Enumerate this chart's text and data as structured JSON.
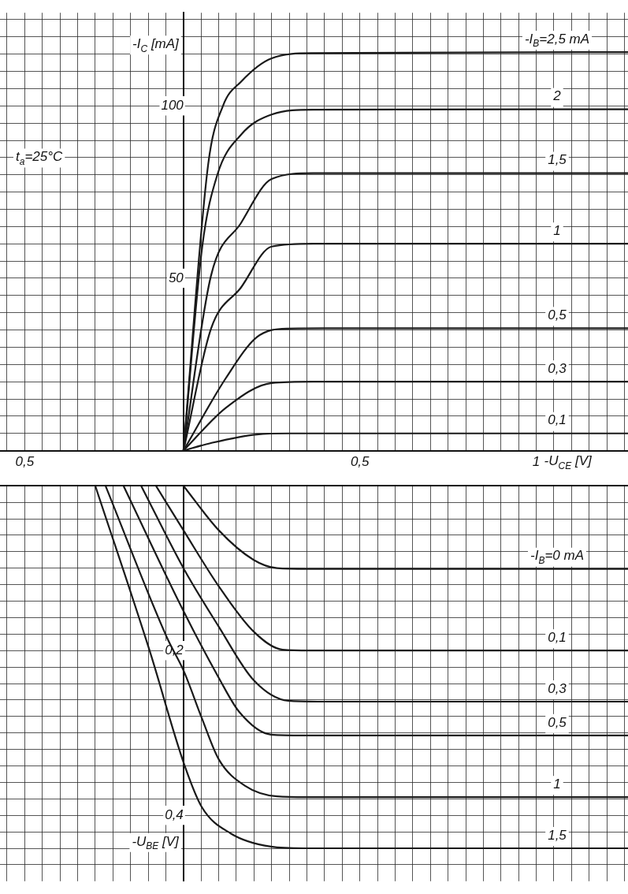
{
  "chart_data": [
    {
      "type": "line",
      "xlabel": "-U$_{CE}$ [V]",
      "ylabel": "-I$_{C}$ [mA]",
      "annotations": [
        "t$_{a}$=25°C"
      ],
      "xlim": [
        -0.52,
        1.26
      ],
      "xticks": [
        {
          "value": -0.5,
          "label": null
        },
        {
          "value": -0.45,
          "label": "0,5"
        },
        {
          "value": -0.4,
          "label": null
        },
        {
          "value": -0.35,
          "label": null
        },
        {
          "value": -0.3,
          "label": null
        },
        {
          "value": -0.25,
          "label": null
        },
        {
          "value": -0.2,
          "label": null
        },
        {
          "value": -0.15,
          "label": null
        },
        {
          "value": -0.1,
          "label": null
        },
        {
          "value": -0.05,
          "label": null
        },
        {
          "value": 0,
          "label": null
        },
        {
          "value": 0.05,
          "label": null
        },
        {
          "value": 0.1,
          "label": null
        },
        {
          "value": 0.15,
          "label": null
        },
        {
          "value": 0.2,
          "label": null
        },
        {
          "value": 0.25,
          "label": null
        },
        {
          "value": 0.3,
          "label": null
        },
        {
          "value": 0.35,
          "label": null
        },
        {
          "value": 0.4,
          "label": null
        },
        {
          "value": 0.45,
          "label": null
        },
        {
          "value": 0.5,
          "label": "0,5"
        },
        {
          "value": 0.55,
          "label": null
        },
        {
          "value": 0.6,
          "label": null
        },
        {
          "value": 0.65,
          "label": null
        },
        {
          "value": 0.7,
          "label": null
        },
        {
          "value": 0.75,
          "label": null
        },
        {
          "value": 0.8,
          "label": null
        },
        {
          "value": 0.85,
          "label": null
        },
        {
          "value": 0.9,
          "label": null
        },
        {
          "value": 0.95,
          "label": null
        },
        {
          "value": 1,
          "label": "1"
        },
        {
          "value": 1.05,
          "label": null
        },
        {
          "value": 1.1,
          "label": null
        },
        {
          "value": 1.15,
          "label": null
        },
        {
          "value": 1.2,
          "label": null
        },
        {
          "value": 1.25,
          "label": null
        }
      ],
      "ylim": [
        0,
        127
      ],
      "yticks": [
        {
          "value": 5,
          "label": null
        },
        {
          "value": 10,
          "label": null
        },
        {
          "value": 15,
          "label": null
        },
        {
          "value": 20,
          "label": null
        },
        {
          "value": 25,
          "label": null
        },
        {
          "value": 30,
          "label": null
        },
        {
          "value": 35,
          "label": null
        },
        {
          "value": 40,
          "label": null
        },
        {
          "value": 45,
          "label": null
        },
        50,
        {
          "value": 55,
          "label": null
        },
        {
          "value": 60,
          "label": null
        },
        {
          "value": 65,
          "label": null
        },
        {
          "value": 70,
          "label": null
        },
        {
          "value": 75,
          "label": null
        },
        {
          "value": 80,
          "label": null
        },
        {
          "value": 85,
          "label": null
        },
        {
          "value": 90,
          "label": null
        },
        {
          "value": 95,
          "label": null
        },
        100,
        {
          "value": 105,
          "label": null
        },
        {
          "value": 110,
          "label": null
        },
        {
          "value": 115,
          "label": null
        },
        {
          "value": 120,
          "label": null
        },
        {
          "value": 125,
          "label": null
        }
      ],
      "grid": true,
      "legend": false,
      "marker": "none",
      "line_style": "solid",
      "series": [
        {
          "name": "-I$_{B}$=2,5 mA",
          "color": "#1a1a1a",
          "x": [
            0,
            0.07,
            0.112,
            0.163,
            0.25,
            0.368,
            1.26
          ],
          "values": [
            0,
            83,
            100,
            107,
            113.8,
            115.3,
            115.6
          ]
        },
        {
          "name": "2",
          "color": "#1a1a1a",
          "x": [
            0,
            0.053,
            0.096,
            0.163,
            0.25,
            0.368,
            1.26
          ],
          "values": [
            0,
            59,
            80,
            91.6,
            97.5,
            98.9,
            99
          ]
        },
        {
          "name": "1,5",
          "color": "#1a1a1a",
          "x": [
            0,
            0.078,
            0.163,
            0.25,
            0.368,
            1.26
          ],
          "values": [
            0,
            50.7,
            66,
            78.8,
            80.5,
            80.5
          ]
        },
        {
          "name": "1",
          "color": "#1a1a1a",
          "x": [
            0,
            0.078,
            0.163,
            0.25,
            0.368,
            1.26
          ],
          "values": [
            0,
            35.3,
            47.3,
            59.2,
            60,
            60
          ]
        },
        {
          "name": "0,5",
          "color": "#1a1a1a",
          "x": [
            0,
            0.12,
            0.208,
            0.292,
            0.4,
            1.26
          ],
          "values": [
            0,
            21,
            32.9,
            35.4,
            35.5,
            35.5
          ]
        },
        {
          "name": "0,3",
          "color": "#1a1a1a",
          "x": [
            0,
            0.12,
            0.25,
            0.368,
            1.26
          ],
          "values": [
            0,
            12.4,
            19.6,
            20,
            20
          ]
        },
        {
          "name": "0,1",
          "color": "#1a1a1a",
          "x": [
            0,
            0.078,
            0.208,
            0.3,
            1.26
          ],
          "values": [
            0,
            2.2,
            4.7,
            5,
            5
          ]
        }
      ]
    },
    {
      "type": "line",
      "ylabel": "-U$_{BE}$ [V]",
      "tick_labels": "y",
      "xlim": [
        -0.52,
        1.26
      ],
      "xticks": [
        {
          "value": -0.5,
          "label": null
        },
        {
          "value": -0.45,
          "label": null
        },
        {
          "value": -0.4,
          "label": null
        },
        {
          "value": -0.35,
          "label": null
        },
        {
          "value": -0.3,
          "label": null
        },
        {
          "value": -0.25,
          "label": null
        },
        {
          "value": -0.2,
          "label": null
        },
        {
          "value": -0.15,
          "label": null
        },
        {
          "value": -0.1,
          "label": null
        },
        {
          "value": -0.05,
          "label": null
        },
        {
          "value": 0,
          "label": null
        },
        {
          "value": 0.05,
          "label": null
        },
        {
          "value": 0.1,
          "label": null
        },
        {
          "value": 0.15,
          "label": null
        },
        {
          "value": 0.2,
          "label": null
        },
        {
          "value": 0.25,
          "label": null
        },
        {
          "value": 0.3,
          "label": null
        },
        {
          "value": 0.35,
          "label": null
        },
        {
          "value": 0.4,
          "label": null
        },
        {
          "value": 0.45,
          "label": null
        },
        {
          "value": 0.5,
          "label": null
        },
        {
          "value": 0.55,
          "label": null
        },
        {
          "value": 0.6,
          "label": null
        },
        {
          "value": 0.65,
          "label": null
        },
        {
          "value": 0.7,
          "label": null
        },
        {
          "value": 0.75,
          "label": null
        },
        {
          "value": 0.8,
          "label": null
        },
        {
          "value": 0.85,
          "label": null
        },
        {
          "value": 0.9,
          "label": null
        },
        {
          "value": 0.95,
          "label": null
        },
        {
          "value": 1,
          "label": null
        },
        {
          "value": 1.05,
          "label": null
        },
        {
          "value": 1.1,
          "label": null
        },
        {
          "value": 1.15,
          "label": null
        },
        {
          "value": 1.2,
          "label": null
        },
        {
          "value": 1.25,
          "label": null
        }
      ],
      "ylim": [
        0.48,
        0
      ],
      "yticks": [
        {
          "value": 0.02,
          "label": null
        },
        {
          "value": 0.04,
          "label": null
        },
        {
          "value": 0.06,
          "label": null
        },
        {
          "value": 0.08,
          "label": null
        },
        {
          "value": 0.1,
          "label": null
        },
        {
          "value": 0.12,
          "label": null
        },
        {
          "value": 0.14,
          "label": null
        },
        {
          "value": 0.16,
          "label": null
        },
        {
          "value": 0.18,
          "label": null
        },
        {
          "value": 0.2,
          "label": "0,2"
        },
        {
          "value": 0.22,
          "label": null
        },
        {
          "value": 0.24,
          "label": null
        },
        {
          "value": 0.26,
          "label": null
        },
        {
          "value": 0.28,
          "label": null
        },
        {
          "value": 0.3,
          "label": null
        },
        {
          "value": 0.32,
          "label": null
        },
        {
          "value": 0.34,
          "label": null
        },
        {
          "value": 0.36,
          "label": null
        },
        {
          "value": 0.38,
          "label": null
        },
        {
          "value": 0.4,
          "label": "0,4"
        },
        {
          "value": 0.42,
          "label": null
        },
        {
          "value": 0.44,
          "label": null
        },
        {
          "value": 0.46,
          "label": null
        }
      ],
      "grid": true,
      "legend": false,
      "marker": "none",
      "line_style": "solid",
      "series": [
        {
          "name": "-I$_{B}$=0 mA",
          "color": "#1a1a1a",
          "x": [
            0,
            0.1,
            0.199,
            0.265,
            0.35,
            1.26
          ],
          "values": [
            0,
            0.054,
            0.09,
            0.1,
            0.101,
            0.101
          ]
        },
        {
          "name": "0,1",
          "color": "#1a1a1a",
          "x": [
            -0.078,
            0,
            0.1,
            0.199,
            0.281,
            0.36,
            1.26
          ],
          "values": [
            0,
            0.054,
            0.122,
            0.177,
            0.199,
            0.2,
            0.2
          ]
        },
        {
          "name": "0,3",
          "color": "#1a1a1a",
          "x": [
            -0.12,
            0,
            0.1,
            0.199,
            0.297,
            0.38,
            1.26
          ],
          "values": [
            0,
            0.1,
            0.171,
            0.236,
            0.261,
            0.262,
            0.262
          ]
        },
        {
          "name": "0,5",
          "color": "#1a1a1a",
          "x": [
            -0.17,
            0,
            0.1,
            0.159,
            0.248,
            0.34,
            1.26
          ],
          "values": [
            0,
            0.152,
            0.233,
            0.275,
            0.302,
            0.303,
            0.303
          ]
        },
        {
          "name": "1",
          "color": "#1a1a1a",
          "x": [
            -0.221,
            -0.047,
            0.002,
            0.052,
            0.1,
            0.174,
            0.265,
            0.35,
            1.26
          ],
          "values": [
            0,
            0.184,
            0.226,
            0.282,
            0.332,
            0.364,
            0.377,
            0.378,
            0.378
          ]
        },
        {
          "name": "1,5",
          "color": "#1a1a1a",
          "x": [
            -0.25,
            -0.096,
            0.002,
            0.052,
            0.134,
            0.248,
            0.34,
            1.26
          ],
          "values": [
            0,
            0.2,
            0.338,
            0.39,
            0.422,
            0.438,
            0.44,
            0.44
          ]
        }
      ]
    }
  ]
}
